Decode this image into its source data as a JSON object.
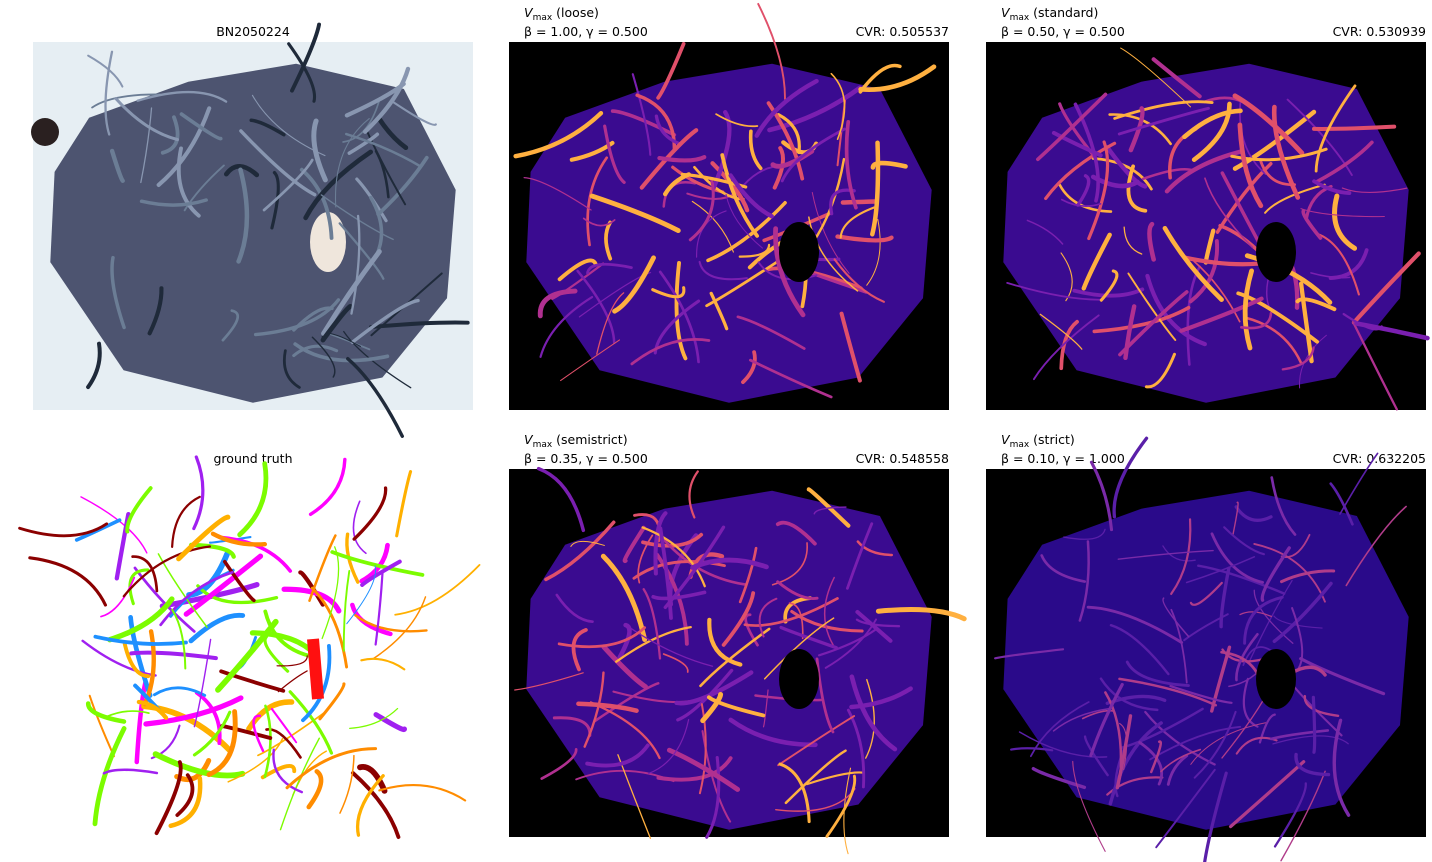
{
  "panels": [
    {
      "title": "BN2050224"
    },
    {
      "symbol": "V",
      "subscript": "max",
      "label": "(loose)",
      "params": "β = 1.00, γ = 0.500",
      "cvr": "CVR: 0.505537"
    },
    {
      "symbol": "V",
      "subscript": "max",
      "label": "(standard)",
      "params": "β = 0.50, γ = 0.500",
      "cvr": "CVR: 0.530939"
    },
    {
      "title": "ground truth"
    },
    {
      "symbol": "V",
      "subscript": "max",
      "label": "(semistrict)",
      "params": "β = 0.35, γ = 0.500",
      "cvr": "CVR: 0.548558"
    },
    {
      "symbol": "V",
      "subscript": "max",
      "label": "(strict)",
      "params": "β = 0.10, γ = 1.000",
      "cvr": "CVR: 0.632205"
    }
  ]
}
